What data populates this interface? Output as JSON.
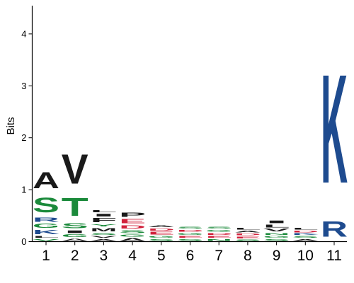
{
  "chart_data": {
    "type": "sequence-logo",
    "ylabel": "Bits",
    "ylim": [
      0,
      4.5
    ],
    "yticks": [
      0,
      1,
      2,
      3,
      4
    ],
    "positions": [
      "1",
      "2",
      "3",
      "4",
      "5",
      "6",
      "7",
      "8",
      "9",
      "10",
      "11"
    ],
    "colors": {
      "hydrophobic": "#1a1a1a",
      "polar": "#1b8a3b",
      "basic": "#1e4b8f",
      "acidic": "#d1213b",
      "neutral": "#7a3f9e"
    },
    "columns": [
      {
        "position": "1",
        "letters": [
          {
            "aa": "V",
            "bits": 0.06,
            "class": "polar"
          },
          {
            "aa": "L",
            "bits": 0.06,
            "class": "hydrophobic"
          },
          {
            "aa": "K",
            "bits": 0.12,
            "class": "basic"
          },
          {
            "aa": "G",
            "bits": 0.12,
            "class": "polar"
          },
          {
            "aa": "R",
            "bits": 0.12,
            "class": "basic"
          },
          {
            "aa": "S",
            "bits": 0.45,
            "class": "polar"
          },
          {
            "aa": "A",
            "bits": 0.5,
            "class": "hydrophobic"
          }
        ]
      },
      {
        "position": "2",
        "letters": [
          {
            "aa": "A",
            "bits": 0.07,
            "class": "hydrophobic"
          },
          {
            "aa": "G",
            "bits": 0.08,
            "class": "polar"
          },
          {
            "aa": "I",
            "bits": 0.08,
            "class": "hydrophobic"
          },
          {
            "aa": "S",
            "bits": 0.16,
            "class": "polar"
          },
          {
            "aa": "T",
            "bits": 0.55,
            "class": "polar"
          },
          {
            "aa": "V",
            "bits": 0.9,
            "class": "hydrophobic"
          }
        ]
      },
      {
        "position": "3",
        "letters": [
          {
            "aa": "A",
            "bits": 0.06,
            "class": "hydrophobic"
          },
          {
            "aa": "V",
            "bits": 0.06,
            "class": "hydrophobic"
          },
          {
            "aa": "S",
            "bits": 0.06,
            "class": "polar"
          },
          {
            "aa": "M",
            "bits": 0.1,
            "class": "hydrophobic"
          },
          {
            "aa": "Y",
            "bits": 0.07,
            "class": "polar"
          },
          {
            "aa": "F",
            "bits": 0.12,
            "class": "hydrophobic"
          },
          {
            "aa": "I",
            "bits": 0.08,
            "class": "hydrophobic"
          },
          {
            "aa": "L",
            "bits": 0.07,
            "class": "hydrophobic"
          }
        ]
      },
      {
        "position": "4",
        "letters": [
          {
            "aa": "A",
            "bits": 0.08,
            "class": "hydrophobic"
          },
          {
            "aa": "G",
            "bits": 0.07,
            "class": "polar"
          },
          {
            "aa": "S",
            "bits": 0.08,
            "class": "polar"
          },
          {
            "aa": "D",
            "bits": 0.1,
            "class": "acidic"
          },
          {
            "aa": "E",
            "bits": 0.12,
            "class": "acidic"
          },
          {
            "aa": "P",
            "bits": 0.12,
            "class": "hydrophobic"
          }
        ]
      },
      {
        "position": "5",
        "letters": [
          {
            "aa": "S",
            "bits": 0.06,
            "class": "polar"
          },
          {
            "aa": "G",
            "bits": 0.06,
            "class": "polar"
          },
          {
            "aa": "E",
            "bits": 0.08,
            "class": "acidic"
          },
          {
            "aa": "D",
            "bits": 0.07,
            "class": "acidic"
          },
          {
            "aa": "A",
            "bits": 0.06,
            "class": "hydrophobic"
          }
        ]
      },
      {
        "position": "6",
        "letters": [
          {
            "aa": "S",
            "bits": 0.06,
            "class": "polar"
          },
          {
            "aa": "E",
            "bits": 0.06,
            "class": "acidic"
          },
          {
            "aa": "G",
            "bits": 0.06,
            "class": "polar"
          },
          {
            "aa": "D",
            "bits": 0.06,
            "class": "acidic"
          },
          {
            "aa": "S",
            "bits": 0.05,
            "class": "polar"
          }
        ]
      },
      {
        "position": "7",
        "letters": [
          {
            "aa": "N",
            "bits": 0.06,
            "class": "polar"
          },
          {
            "aa": "E",
            "bits": 0.06,
            "class": "acidic"
          },
          {
            "aa": "D",
            "bits": 0.06,
            "class": "acidic"
          },
          {
            "aa": "G",
            "bits": 0.06,
            "class": "polar"
          },
          {
            "aa": "S",
            "bits": 0.06,
            "class": "polar"
          }
        ]
      },
      {
        "position": "8",
        "letters": [
          {
            "aa": "S",
            "bits": 0.05,
            "class": "polar"
          },
          {
            "aa": "E",
            "bits": 0.06,
            "class": "acidic"
          },
          {
            "aa": "D",
            "bits": 0.06,
            "class": "acidic"
          },
          {
            "aa": "A",
            "bits": 0.05,
            "class": "hydrophobic"
          },
          {
            "aa": "L",
            "bits": 0.05,
            "class": "hydrophobic"
          }
        ]
      },
      {
        "position": "9",
        "letters": [
          {
            "aa": "S",
            "bits": 0.06,
            "class": "polar"
          },
          {
            "aa": "G",
            "bits": 0.06,
            "class": "polar"
          },
          {
            "aa": "N",
            "bits": 0.06,
            "class": "polar"
          },
          {
            "aa": "V",
            "bits": 0.08,
            "class": "hydrophobic"
          },
          {
            "aa": "L",
            "bits": 0.08,
            "class": "hydrophobic"
          },
          {
            "aa": "I",
            "bits": 0.08,
            "class": "hydrophobic"
          }
        ]
      },
      {
        "position": "10",
        "letters": [
          {
            "aa": "A",
            "bits": 0.06,
            "class": "hydrophobic"
          },
          {
            "aa": "S",
            "bits": 0.06,
            "class": "polar"
          },
          {
            "aa": "K",
            "bits": 0.05,
            "class": "basic"
          },
          {
            "aa": "D",
            "bits": 0.05,
            "class": "acidic"
          },
          {
            "aa": "L",
            "bits": 0.05,
            "class": "hydrophobic"
          }
        ]
      },
      {
        "position": "11",
        "letters": [
          {
            "aa": "R",
            "bits": 0.48,
            "class": "basic"
          },
          {
            "aa": "K",
            "bits": 3.35,
            "class": "basic"
          }
        ]
      }
    ]
  }
}
